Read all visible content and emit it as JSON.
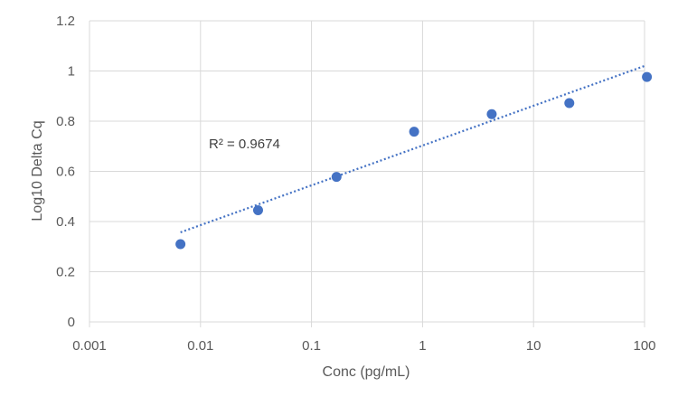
{
  "chart_data": {
    "type": "scatter",
    "title": "",
    "xlabel": "Conc (pg/mL)",
    "ylabel": "Log10 Delta Cq",
    "x_scale": "log",
    "xlim": [
      0.001,
      100
    ],
    "ylim": [
      0,
      1.2
    ],
    "x_ticks": [
      0.001,
      0.01,
      0.1,
      1,
      10,
      100
    ],
    "x_tick_labels": [
      "0.001",
      "0.01",
      "0.1",
      "1",
      "10",
      "100"
    ],
    "y_ticks": [
      0,
      0.2,
      0.4,
      0.6,
      0.8,
      1,
      1.2
    ],
    "y_tick_labels": [
      "0",
      "0.2",
      "0.4",
      "0.6",
      "0.8",
      "1",
      "1.2"
    ],
    "grid": true,
    "legend": "none",
    "colors": {
      "points": "#4472C4",
      "trendline": "#4472C4",
      "grid": "#D9D9D9"
    },
    "points": [
      {
        "x": 0.0066,
        "y": 0.31
      },
      {
        "x": 0.033,
        "y": 0.445
      },
      {
        "x": 0.168,
        "y": 0.578
      },
      {
        "x": 0.84,
        "y": 0.758
      },
      {
        "x": 4.2,
        "y": 0.828
      },
      {
        "x": 21,
        "y": 0.872
      },
      {
        "x": 105,
        "y": 0.976
      }
    ],
    "trendline": {
      "type": "logarithmic",
      "style": "dotted",
      "from": {
        "x": 0.0066,
        "y": 0.357
      },
      "to": {
        "x": 100,
        "y": 1.02
      }
    },
    "annotations": [
      {
        "text": "R² = 0.9674"
      }
    ]
  }
}
